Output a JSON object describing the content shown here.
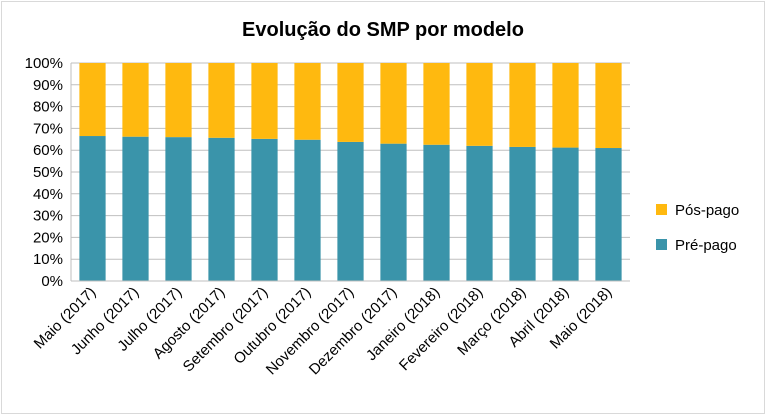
{
  "chart_data": {
    "type": "bar",
    "stacked": true,
    "title": "Evolução do SMP por modelo",
    "categories": [
      "Maio (2017)",
      "Junho (2017)",
      "Julho (2017)",
      "Agosto (2017)",
      "Setembro (2017)",
      "Outubro (2017)",
      "Novembro (2017)",
      "Dezembro (2017)",
      "Janeiro (2018)",
      "Fevereiro (2018)",
      "Março (2018)",
      "Abril (2018)",
      "Maio (2018)"
    ],
    "series": [
      {
        "name": "Pré-pago",
        "color": "#3a94aa",
        "values": [
          66.5,
          66.2,
          66.0,
          65.7,
          65.2,
          64.8,
          63.8,
          63.0,
          62.5,
          62.0,
          61.5,
          61.2,
          61.0
        ]
      },
      {
        "name": "Pós-pago",
        "color": "#ffb90f",
        "values": [
          33.5,
          33.8,
          34.0,
          34.3,
          34.8,
          35.2,
          36.2,
          37.0,
          37.5,
          38.0,
          38.5,
          38.8,
          39.0
        ]
      }
    ],
    "ylim": [
      0,
      100
    ],
    "y_ticks": [
      "0%",
      "10%",
      "20%",
      "30%",
      "40%",
      "50%",
      "60%",
      "70%",
      "80%",
      "90%",
      "100%"
    ],
    "grid": true,
    "legend_position": "right"
  }
}
